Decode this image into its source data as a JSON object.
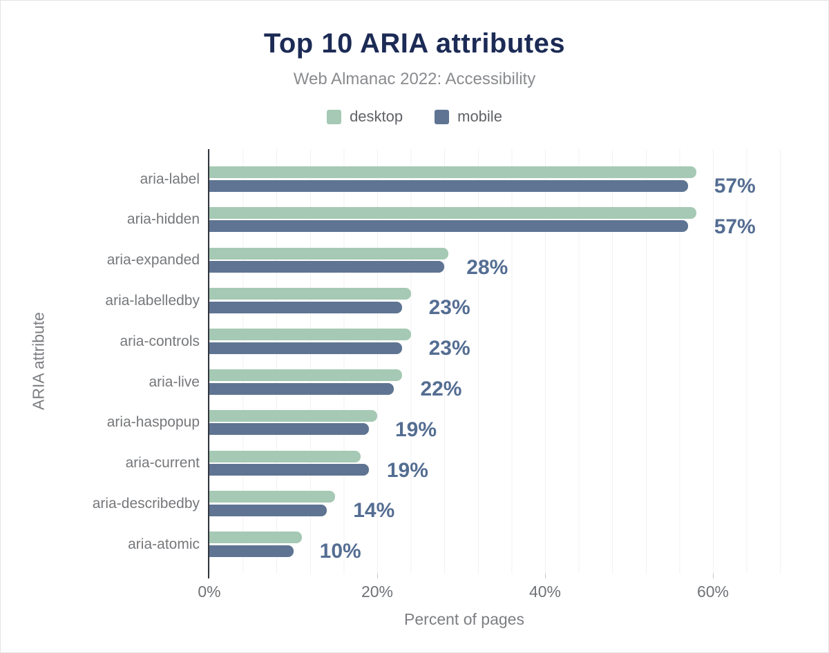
{
  "title": "Top 10 ARIA attributes",
  "subtitle": "Web Almanac 2022: Accessibility",
  "legend": [
    {
      "label": "desktop",
      "color": "#a5c9b4"
    },
    {
      "label": "mobile",
      "color": "#5e7492"
    }
  ],
  "axes": {
    "x_title": "Percent of pages",
    "y_title": "ARIA attribute",
    "x_ticks": [
      "0%",
      "20%",
      "40%",
      "60%"
    ],
    "x_tick_values": [
      0,
      20,
      40,
      60
    ]
  },
  "chart_data": {
    "type": "bar",
    "orientation": "horizontal",
    "title": "Top 10 ARIA attributes",
    "subtitle": "Web Almanac 2022: Accessibility",
    "xlabel": "Percent of pages",
    "ylabel": "ARIA attribute",
    "xlim": [
      0,
      69
    ],
    "grid": "vertical minor gridlines every 4%",
    "legend_position": "top",
    "categories": [
      "aria-label",
      "aria-hidden",
      "aria-expanded",
      "aria-labelledby",
      "aria-controls",
      "aria-live",
      "aria-haspopup",
      "aria-current",
      "aria-describedby",
      "aria-atomic"
    ],
    "series": [
      {
        "name": "desktop",
        "color": "#a5c9b4",
        "values": [
          58,
          58,
          28.5,
          24,
          24,
          23,
          20,
          18,
          15,
          11
        ]
      },
      {
        "name": "mobile",
        "color": "#5e7492",
        "values": [
          57,
          57,
          28,
          23,
          23,
          22,
          19,
          19,
          14,
          10
        ]
      }
    ],
    "value_labels": [
      "57%",
      "57%",
      "28%",
      "23%",
      "23%",
      "22%",
      "19%",
      "19%",
      "14%",
      "10%"
    ]
  },
  "colors": {
    "title": "#1c2b55",
    "subtitle": "#898b8e",
    "desktop_bar": "#a5c9b4",
    "mobile_bar": "#5e7492",
    "value_label": "#546d92",
    "axis_line": "#31353c",
    "gridline": "#f1f1f2",
    "tick_text": "#6f7276"
  }
}
